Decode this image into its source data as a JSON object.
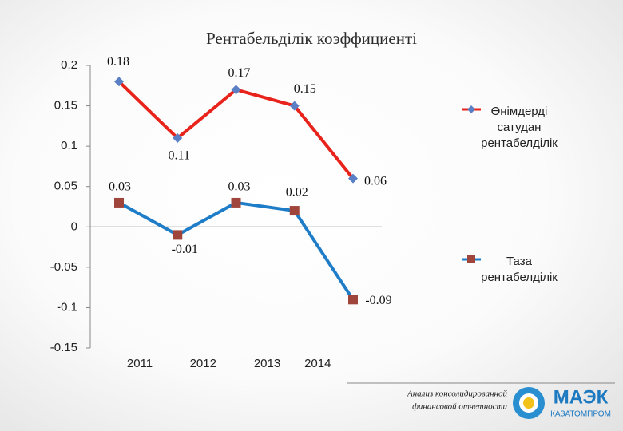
{
  "chart_data": {
    "type": "line",
    "title": "Рентабельділік коэффициенті",
    "categories": [
      "2011",
      "2012",
      "2013",
      "2014",
      null
    ],
    "series": [
      {
        "name": "Өнімдерді сатудан рентабелділік",
        "color": "#e8231b",
        "marker_color": "#5b7fc4",
        "marker": "diamond",
        "values": [
          0.18,
          0.11,
          0.17,
          0.15,
          0.06
        ]
      },
      {
        "name": "Таза рентабелділік",
        "color": "#1f7dc8",
        "marker_color": "#a0453c",
        "marker": "square",
        "values": [
          0.03,
          -0.01,
          0.03,
          0.02,
          -0.09
        ]
      }
    ],
    "ylim": [
      -0.15,
      0.2
    ],
    "yticks": [
      -0.15,
      -0.1,
      -0.05,
      0,
      0.05,
      0.1,
      0.15,
      0.2
    ],
    "grid": false,
    "legend": "right"
  },
  "footer": {
    "caption": [
      "Анализ консолидированной",
      "финансовой отчетности"
    ],
    "logo": "МАЭК",
    "logo_sub": "КАЗАТОМПРОМ"
  }
}
